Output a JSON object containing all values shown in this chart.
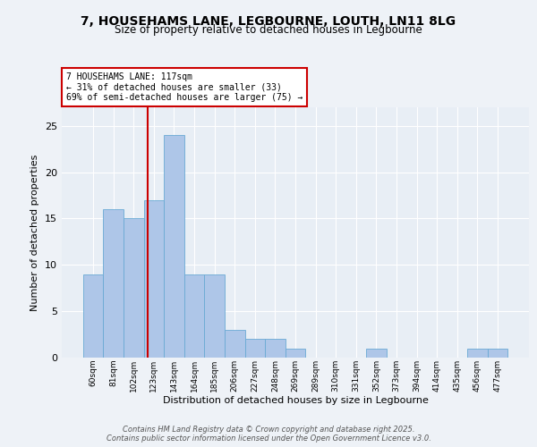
{
  "title_line1": "7, HOUSEHAMS LANE, LEGBOURNE, LOUTH, LN11 8LG",
  "title_line2": "Size of property relative to detached houses in Legbourne",
  "xlabel": "Distribution of detached houses by size in Legbourne",
  "ylabel": "Number of detached properties",
  "categories": [
    "60sqm",
    "81sqm",
    "102sqm",
    "123sqm",
    "143sqm",
    "164sqm",
    "185sqm",
    "206sqm",
    "227sqm",
    "248sqm",
    "269sqm",
    "289sqm",
    "310sqm",
    "331sqm",
    "352sqm",
    "373sqm",
    "394sqm",
    "414sqm",
    "435sqm",
    "456sqm",
    "477sqm"
  ],
  "values": [
    9,
    16,
    15,
    17,
    24,
    9,
    9,
    3,
    2,
    2,
    1,
    0,
    0,
    0,
    1,
    0,
    0,
    0,
    0,
    1,
    1
  ],
  "bar_color": "#aec6e8",
  "bar_edge_color": "#6aaad4",
  "annotation_title": "7 HOUSEHAMS LANE: 117sqm",
  "annotation_line2": "← 31% of detached houses are smaller (33)",
  "annotation_line3": "69% of semi-detached houses are larger (75) →",
  "annotation_box_color": "#ffffff",
  "annotation_box_edge": "#cc0000",
  "ylim": [
    0,
    27
  ],
  "yticks": [
    0,
    5,
    10,
    15,
    20,
    25
  ],
  "background_color": "#e8eef5",
  "fig_background": "#eef2f7",
  "footer_line1": "Contains HM Land Registry data © Crown copyright and database right 2025.",
  "footer_line2": "Contains public sector information licensed under the Open Government Licence v3.0."
}
